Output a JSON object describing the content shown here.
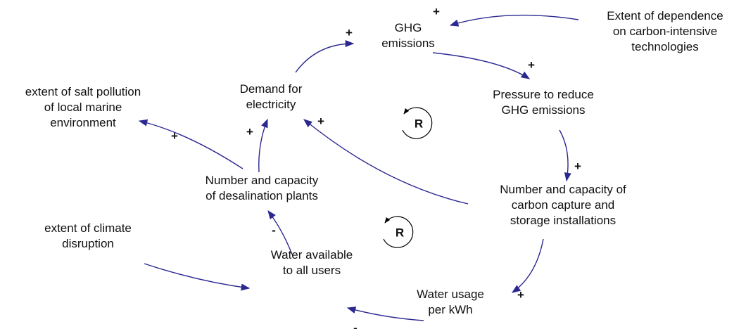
{
  "nodes": [
    {
      "lines": [
        "GHG",
        "emissions"
      ]
    },
    {
      "lines": [
        "Extent of dependence",
        "on carbon-intensive",
        "technologies"
      ]
    },
    {
      "lines": [
        "Pressure to reduce",
        "GHG emissions"
      ]
    },
    {
      "lines": [
        "Number and capacity of",
        "carbon capture and",
        "storage installations"
      ]
    },
    {
      "lines": [
        "Water usage",
        "per kWh"
      ]
    },
    {
      "lines": [
        "Water available",
        "to all users"
      ]
    },
    {
      "lines": [
        "extent of climate",
        "disruption"
      ]
    },
    {
      "lines": [
        "Number and capacity",
        "of desalination plants"
      ]
    },
    {
      "lines": [
        "Demand for",
        "electricity"
      ]
    },
    {
      "lines": [
        "extent of salt pollution",
        "of local marine",
        "environment"
      ]
    }
  ],
  "polarities": [
    "+",
    "+",
    "+",
    "+",
    "+",
    "-",
    "-",
    "+",
    "+",
    "+"
  ],
  "loops": [
    "R",
    "R"
  ]
}
